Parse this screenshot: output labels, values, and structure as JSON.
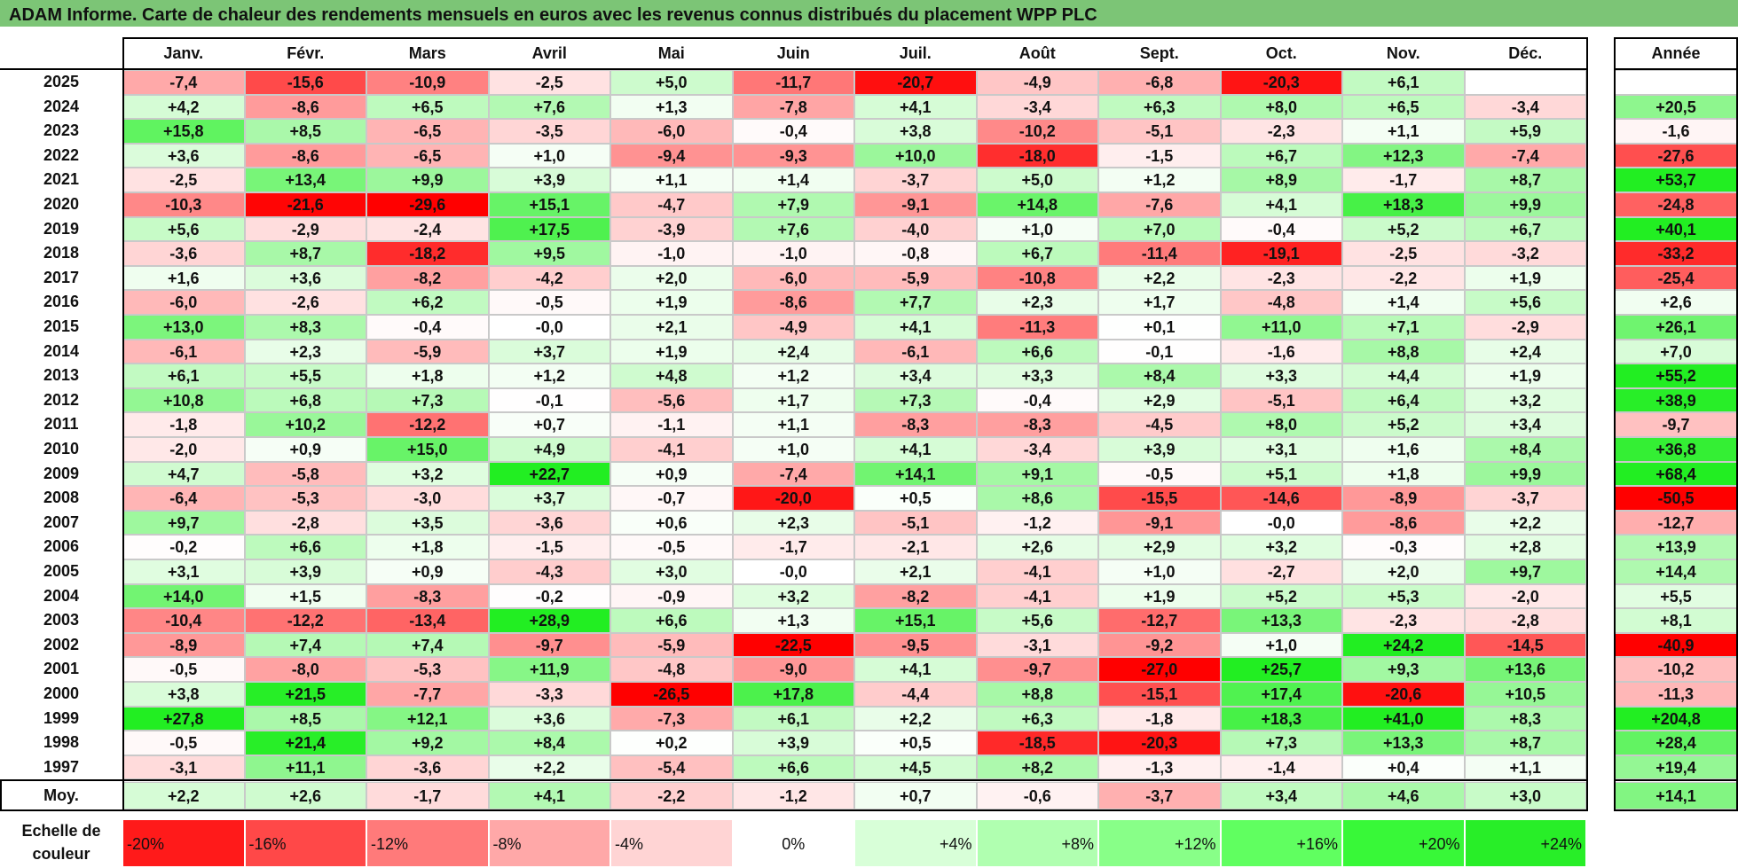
{
  "title": "ADAM Informe. Carte de chaleur des rendements mensuels en euros avec les revenus connus distribués du placement WPP PLC",
  "chart_data": {
    "type": "heatmap",
    "columns": [
      "Janv.",
      "Févr.",
      "Mars",
      "Avril",
      "Mai",
      "Juin",
      "Juil.",
      "Août",
      "Sept.",
      "Oct.",
      "Nov.",
      "Déc."
    ],
    "annual_header": "Année",
    "rows": [
      {
        "year": "2025",
        "values": [
          "-7,4",
          "-15,6",
          "-10,9",
          "-2,5",
          "+5,0",
          "-11,7",
          "-20,7",
          "-4,9",
          "-6,8",
          "-20,3",
          "+6,1",
          ""
        ],
        "annual": ""
      },
      {
        "year": "2024",
        "values": [
          "+4,2",
          "-8,6",
          "+6,5",
          "+7,6",
          "+1,3",
          "-7,8",
          "+4,1",
          "-3,4",
          "+6,3",
          "+8,0",
          "+6,5",
          "-3,4"
        ],
        "annual": "+20,5"
      },
      {
        "year": "2023",
        "values": [
          "+15,8",
          "+8,5",
          "-6,5",
          "-3,5",
          "-6,0",
          "-0,4",
          "+3,8",
          "-10,2",
          "-5,1",
          "-2,3",
          "+1,1",
          "+5,9"
        ],
        "annual": "-1,6"
      },
      {
        "year": "2022",
        "values": [
          "+3,6",
          "-8,6",
          "-6,5",
          "+1,0",
          "-9,4",
          "-9,3",
          "+10,0",
          "-18,0",
          "-1,5",
          "+6,7",
          "+12,3",
          "-7,4"
        ],
        "annual": "-27,6"
      },
      {
        "year": "2021",
        "values": [
          "-2,5",
          "+13,4",
          "+9,9",
          "+3,9",
          "+1,1",
          "+1,4",
          "-3,7",
          "+5,0",
          "+1,2",
          "+8,9",
          "-1,7",
          "+8,7"
        ],
        "annual": "+53,7"
      },
      {
        "year": "2020",
        "values": [
          "-10,3",
          "-21,6",
          "-29,6",
          "+15,1",
          "-4,7",
          "+7,9",
          "-9,1",
          "+14,8",
          "-7,6",
          "+4,1",
          "+18,3",
          "+9,9"
        ],
        "annual": "-24,8"
      },
      {
        "year": "2019",
        "values": [
          "+5,6",
          "-2,9",
          "-2,4",
          "+17,5",
          "-3,9",
          "+7,6",
          "-4,0",
          "+1,0",
          "+7,0",
          "-0,4",
          "+5,2",
          "+6,7"
        ],
        "annual": "+40,1"
      },
      {
        "year": "2018",
        "values": [
          "-3,6",
          "+8,7",
          "-18,2",
          "+9,5",
          "-1,0",
          "-1,0",
          "-0,8",
          "+6,7",
          "-11,4",
          "-19,1",
          "-2,5",
          "-3,2"
        ],
        "annual": "-33,2"
      },
      {
        "year": "2017",
        "values": [
          "+1,6",
          "+3,6",
          "-8,2",
          "-4,2",
          "+2,0",
          "-6,0",
          "-5,9",
          "-10,8",
          "+2,2",
          "-2,3",
          "-2,2",
          "+1,9"
        ],
        "annual": "-25,4"
      },
      {
        "year": "2016",
        "values": [
          "-6,0",
          "-2,6",
          "+6,2",
          "-0,5",
          "+1,9",
          "-8,6",
          "+7,7",
          "+2,3",
          "+1,7",
          "-4,8",
          "+1,4",
          "+5,6"
        ],
        "annual": "+2,6"
      },
      {
        "year": "2015",
        "values": [
          "+13,0",
          "+8,3",
          "-0,4",
          "-0,0",
          "+2,1",
          "-4,9",
          "+4,1",
          "-11,3",
          "+0,1",
          "+11,0",
          "+7,1",
          "-2,9"
        ],
        "annual": "+26,1"
      },
      {
        "year": "2014",
        "values": [
          "-6,1",
          "+2,3",
          "-5,9",
          "+3,7",
          "+1,9",
          "+2,4",
          "-6,1",
          "+6,6",
          "-0,1",
          "-1,6",
          "+8,8",
          "+2,4"
        ],
        "annual": "+7,0"
      },
      {
        "year": "2013",
        "values": [
          "+6,1",
          "+5,5",
          "+1,8",
          "+1,2",
          "+4,8",
          "+1,2",
          "+3,4",
          "+3,3",
          "+8,4",
          "+3,3",
          "+4,4",
          "+1,9"
        ],
        "annual": "+55,2"
      },
      {
        "year": "2012",
        "values": [
          "+10,8",
          "+6,8",
          "+7,3",
          "-0,1",
          "-5,6",
          "+1,7",
          "+7,3",
          "-0,4",
          "+2,9",
          "-5,1",
          "+6,4",
          "+3,2"
        ],
        "annual": "+38,9"
      },
      {
        "year": "2011",
        "values": [
          "-1,8",
          "+10,2",
          "-12,2",
          "+0,7",
          "-1,1",
          "+1,1",
          "-8,3",
          "-8,3",
          "-4,5",
          "+8,0",
          "+5,2",
          "+3,4"
        ],
        "annual": "-9,7"
      },
      {
        "year": "2010",
        "values": [
          "-2,0",
          "+0,9",
          "+15,0",
          "+4,9",
          "-4,1",
          "+1,0",
          "+4,1",
          "-3,4",
          "+3,9",
          "+3,1",
          "+1,6",
          "+8,4"
        ],
        "annual": "+36,8"
      },
      {
        "year": "2009",
        "values": [
          "+4,7",
          "-5,8",
          "+3,2",
          "+22,7",
          "+0,9",
          "-7,4",
          "+14,1",
          "+9,1",
          "-0,5",
          "+5,1",
          "+1,8",
          "+9,9"
        ],
        "annual": "+68,4"
      },
      {
        "year": "2008",
        "values": [
          "-6,4",
          "-5,3",
          "-3,0",
          "+3,7",
          "-0,7",
          "-20,0",
          "+0,5",
          "+8,6",
          "-15,5",
          "-14,6",
          "-8,9",
          "-3,7"
        ],
        "annual": "-50,5"
      },
      {
        "year": "2007",
        "values": [
          "+9,7",
          "-2,8",
          "+3,5",
          "-3,6",
          "+0,6",
          "+2,3",
          "-5,1",
          "-1,2",
          "-9,1",
          "-0,0",
          "-8,6",
          "+2,2"
        ],
        "annual": "-12,7"
      },
      {
        "year": "2006",
        "values": [
          "-0,2",
          "+6,6",
          "+1,8",
          "-1,5",
          "-0,5",
          "-1,7",
          "-2,1",
          "+2,6",
          "+2,9",
          "+3,2",
          "-0,3",
          "+2,8"
        ],
        "annual": "+13,9"
      },
      {
        "year": "2005",
        "values": [
          "+3,1",
          "+3,9",
          "+0,9",
          "-4,3",
          "+3,0",
          "-0,0",
          "+2,1",
          "-4,1",
          "+1,0",
          "-2,7",
          "+2,0",
          "+9,7"
        ],
        "annual": "+14,4"
      },
      {
        "year": "2004",
        "values": [
          "+14,0",
          "+1,5",
          "-8,3",
          "-0,2",
          "-0,9",
          "+3,2",
          "-8,2",
          "-4,1",
          "+1,9",
          "+5,2",
          "+5,3",
          "-2,0"
        ],
        "annual": "+5,5"
      },
      {
        "year": "2003",
        "values": [
          "-10,4",
          "-12,2",
          "-13,4",
          "+28,9",
          "+6,6",
          "+1,3",
          "+15,1",
          "+5,6",
          "-12,7",
          "+13,3",
          "-2,3",
          "-2,8"
        ],
        "annual": "+8,1"
      },
      {
        "year": "2002",
        "values": [
          "-8,9",
          "+7,4",
          "+7,4",
          "-9,7",
          "-5,9",
          "-22,5",
          "-9,5",
          "-3,1",
          "-9,2",
          "+1,0",
          "+24,2",
          "-14,5"
        ],
        "annual": "-40,9"
      },
      {
        "year": "2001",
        "values": [
          "-0,5",
          "-8,0",
          "-5,3",
          "+11,9",
          "-4,8",
          "-9,0",
          "+4,1",
          "-9,7",
          "-27,0",
          "+25,7",
          "+9,3",
          "+13,6"
        ],
        "annual": "-10,2"
      },
      {
        "year": "2000",
        "values": [
          "+3,8",
          "+21,5",
          "-7,7",
          "-3,3",
          "-26,5",
          "+17,8",
          "-4,4",
          "+8,8",
          "-15,1",
          "+17,4",
          "-20,6",
          "+10,5"
        ],
        "annual": "-11,3"
      },
      {
        "year": "1999",
        "values": [
          "+27,8",
          "+8,5",
          "+12,1",
          "+3,6",
          "-7,3",
          "+6,1",
          "+2,2",
          "+6,3",
          "-1,8",
          "+18,3",
          "+41,0",
          "+8,3"
        ],
        "annual": "+204,8"
      },
      {
        "year": "1998",
        "values": [
          "-0,5",
          "+21,4",
          "+9,2",
          "+8,4",
          "+0,2",
          "+3,9",
          "+0,5",
          "-18,5",
          "-20,3",
          "+7,3",
          "+13,3",
          "+8,7"
        ],
        "annual": "+28,4"
      },
      {
        "year": "1997",
        "values": [
          "-3,1",
          "+11,1",
          "-3,6",
          "+2,2",
          "-5,4",
          "+6,6",
          "+4,5",
          "+8,2",
          "-1,3",
          "-1,4",
          "+0,4",
          "+1,1"
        ],
        "annual": "+19,4"
      }
    ],
    "average": {
      "label": "Moy.",
      "values": [
        "+2,2",
        "+2,6",
        "-1,7",
        "+4,1",
        "-2,2",
        "-1,2",
        "+0,7",
        "-0,6",
        "-3,7",
        "+3,4",
        "+4,6",
        "+3,0"
      ],
      "annual": "+14,1"
    },
    "scale": {
      "label": "Echelle de couleur",
      "stops": [
        "-20%",
        "-16%",
        "-12%",
        "-8%",
        "-4%",
        "0%",
        "+4%",
        "+8%",
        "+12%",
        "+16%",
        "+20%",
        "+24%"
      ],
      "colors": [
        "#ff1a1a",
        "#ff4848",
        "#ff7a7a",
        "#ffa8a8",
        "#ffd4d4",
        "#ffffff",
        "#d8ffd8",
        "#b0ffb0",
        "#88ff88",
        "#60ff60",
        "#38f838",
        "#28ee28"
      ]
    },
    "colors": {
      "negative_max": "#ff0000",
      "neutral": "#ffffff",
      "positive_max": "#22ee22",
      "title_band": "#7cc576"
    }
  }
}
